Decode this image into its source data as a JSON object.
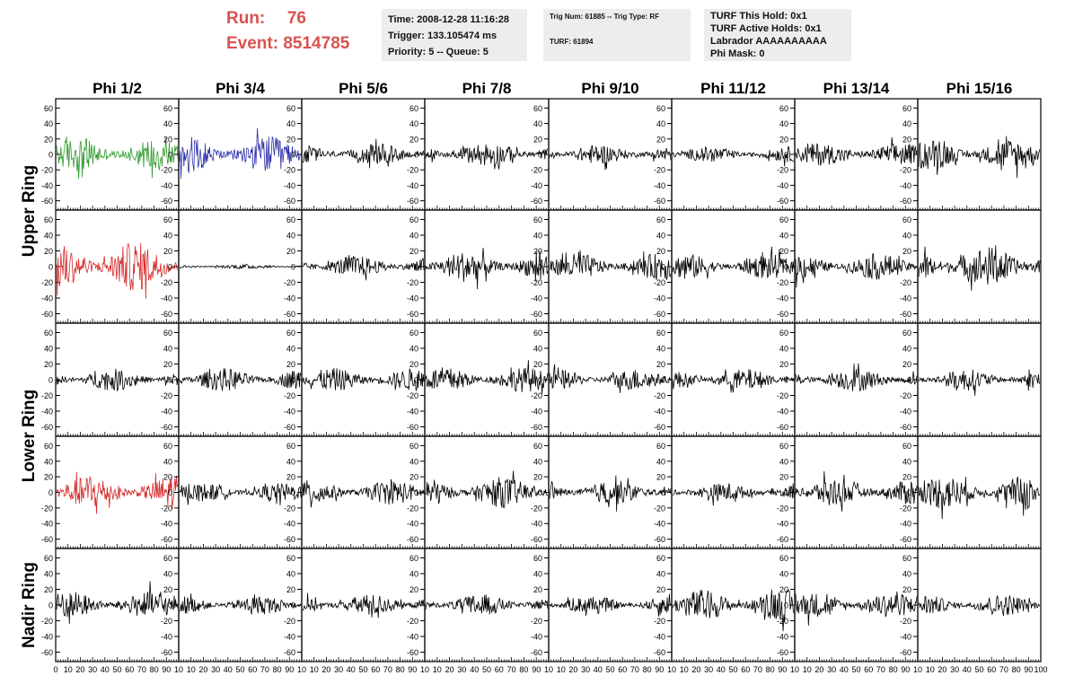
{
  "header": {
    "run_label": "Run:",
    "run_value": "76",
    "event_label": "Event:",
    "event_value": "8514785",
    "time_text": "Time: 2008-12-28 11:16:28",
    "trigger_text": "Trigger: 133.105474 ms",
    "priority_text": "Priority: 5 -- Queue: 5",
    "trig_num_text": "Trig Num: 61885 -- Trig Type: RF",
    "turf_text": "TURF: 61894",
    "turf_hold_text": "TURF This Hold: 0x1",
    "turf_active_text": "TURF Active Holds: 0x1",
    "labrador_text": "Labrador AAAAAAAAAA",
    "phi_mask_text": "Phi Mask: 0"
  },
  "colors": {
    "header_red": "#d9534f",
    "trace_default": "#000000",
    "trace_green": "#2e9a2e",
    "trace_blue": "#2b2fa8",
    "trace_red": "#d42a2a"
  },
  "chart_data": {
    "type": "line",
    "columns": [
      "Phi 1/2",
      "Phi 3/4",
      "Phi 5/6",
      "Phi 7/8",
      "Phi 9/10",
      "Phi 11/12",
      "Phi 13/14",
      "Phi 15/16"
    ],
    "rows": [
      "Upper Ring",
      "Lower Ring",
      "Nadir Ring"
    ],
    "y_ticks": [
      60,
      40,
      20,
      0,
      -20,
      -40,
      -60
    ],
    "x_ticks_first_panel": [
      "0",
      "10",
      "20",
      "30",
      "40",
      "50",
      "60",
      "70",
      "80",
      "90",
      "10"
    ],
    "x_ticks_panel": [
      "10",
      "20",
      "30",
      "40",
      "50",
      "60",
      "70",
      "80",
      "90",
      "10"
    ],
    "x_ticks_last_panel": [
      "10",
      "20",
      "30",
      "40",
      "50",
      "60",
      "70",
      "80",
      "90",
      "100"
    ],
    "xlim": [
      0,
      100
    ],
    "ylim": [
      -72,
      72
    ],
    "grid": false,
    "panels": [
      {
        "row": 0,
        "col": 0,
        "amplitude": 22,
        "color": "green"
      },
      {
        "row": 0,
        "col": 1,
        "amplitude": 24,
        "color": "blue"
      },
      {
        "row": 0,
        "col": 2,
        "amplitude": 14,
        "color": "black"
      },
      {
        "row": 0,
        "col": 3,
        "amplitude": 16,
        "color": "black"
      },
      {
        "row": 0,
        "col": 4,
        "amplitude": 13,
        "color": "black"
      },
      {
        "row": 0,
        "col": 5,
        "amplitude": 10,
        "color": "black"
      },
      {
        "row": 0,
        "col": 6,
        "amplitude": 15,
        "color": "black"
      },
      {
        "row": 0,
        "col": 7,
        "amplitude": 20,
        "color": "black"
      },
      {
        "row": 1,
        "col": 0,
        "amplitude": 32,
        "color": "red"
      },
      {
        "row": 1,
        "col": 1,
        "amplitude": 3,
        "color": "black"
      },
      {
        "row": 1,
        "col": 2,
        "amplitude": 14,
        "color": "black"
      },
      {
        "row": 1,
        "col": 3,
        "amplitude": 20,
        "color": "black"
      },
      {
        "row": 1,
        "col": 4,
        "amplitude": 17,
        "color": "black"
      },
      {
        "row": 1,
        "col": 5,
        "amplitude": 16,
        "color": "black"
      },
      {
        "row": 1,
        "col": 6,
        "amplitude": 17,
        "color": "black"
      },
      {
        "row": 1,
        "col": 7,
        "amplitude": 26,
        "color": "black"
      },
      {
        "row": 2,
        "col": 0,
        "amplitude": 14,
        "color": "black"
      },
      {
        "row": 2,
        "col": 1,
        "amplitude": 15,
        "color": "black"
      },
      {
        "row": 2,
        "col": 2,
        "amplitude": 15,
        "color": "black"
      },
      {
        "row": 2,
        "col": 3,
        "amplitude": 16,
        "color": "black"
      },
      {
        "row": 2,
        "col": 4,
        "amplitude": 14,
        "color": "black"
      },
      {
        "row": 2,
        "col": 5,
        "amplitude": 14,
        "color": "black"
      },
      {
        "row": 2,
        "col": 6,
        "amplitude": 15,
        "color": "black"
      },
      {
        "row": 2,
        "col": 7,
        "amplitude": 14,
        "color": "black"
      },
      {
        "row": 3,
        "col": 0,
        "amplitude": 22,
        "color": "red"
      },
      {
        "row": 3,
        "col": 1,
        "amplitude": 12,
        "color": "black"
      },
      {
        "row": 3,
        "col": 2,
        "amplitude": 16,
        "color": "black"
      },
      {
        "row": 3,
        "col": 3,
        "amplitude": 20,
        "color": "black"
      },
      {
        "row": 3,
        "col": 4,
        "amplitude": 16,
        "color": "black"
      },
      {
        "row": 3,
        "col": 5,
        "amplitude": 12,
        "color": "black"
      },
      {
        "row": 3,
        "col": 6,
        "amplitude": 18,
        "color": "black"
      },
      {
        "row": 3,
        "col": 7,
        "amplitude": 22,
        "color": "black"
      },
      {
        "row": 4,
        "col": 0,
        "amplitude": 18,
        "color": "black"
      },
      {
        "row": 4,
        "col": 1,
        "amplitude": 12,
        "color": "black"
      },
      {
        "row": 4,
        "col": 2,
        "amplitude": 14,
        "color": "black"
      },
      {
        "row": 4,
        "col": 3,
        "amplitude": 14,
        "color": "black"
      },
      {
        "row": 4,
        "col": 4,
        "amplitude": 12,
        "color": "black"
      },
      {
        "row": 4,
        "col": 5,
        "amplitude": 20,
        "color": "black"
      },
      {
        "row": 4,
        "col": 6,
        "amplitude": 16,
        "color": "black"
      },
      {
        "row": 4,
        "col": 7,
        "amplitude": 14,
        "color": "black"
      }
    ]
  }
}
